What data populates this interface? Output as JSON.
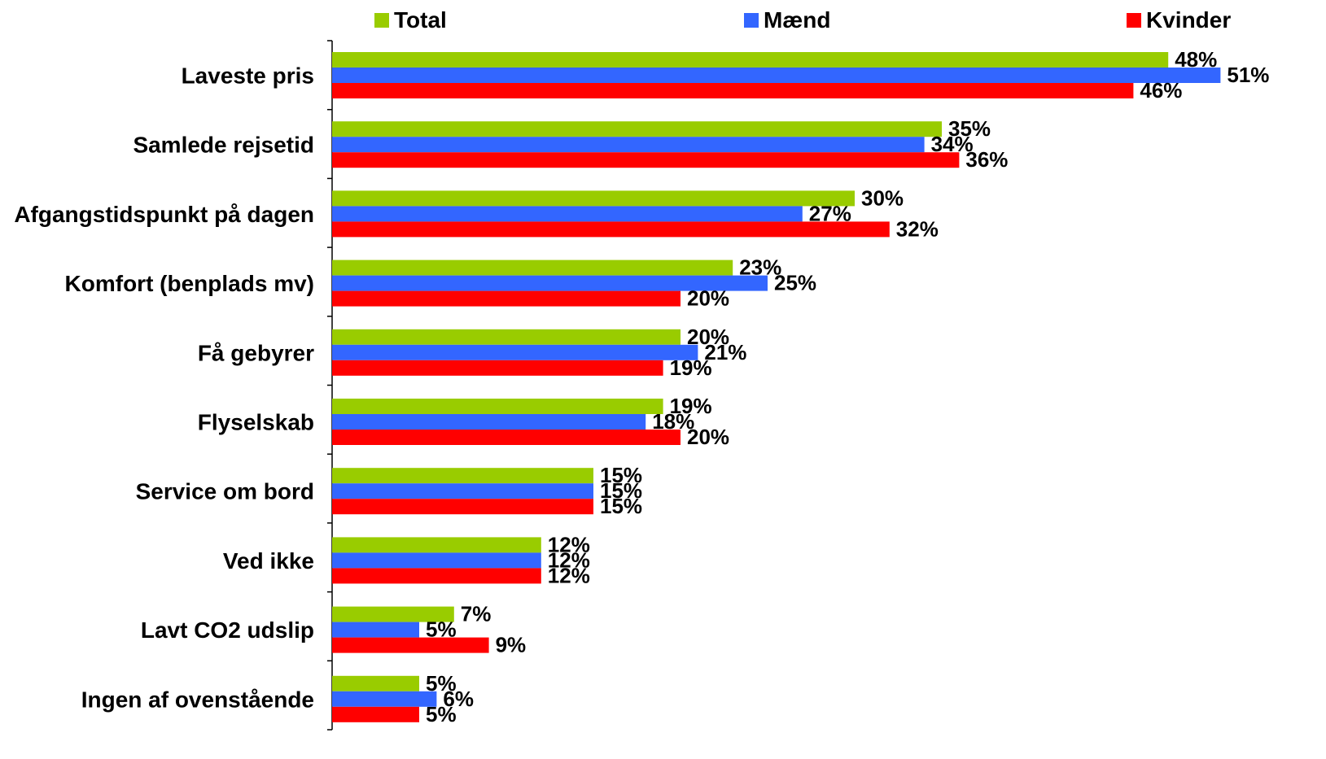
{
  "chart_data": {
    "type": "bar",
    "orientation": "horizontal",
    "categories": [
      "Laveste pris",
      "Samlede rejsetid",
      "Afgangstidspunkt på dagen",
      "Komfort (benplads mv)",
      "Få gebyrer",
      "Flyselskab",
      "Service om bord",
      "Ved ikke",
      "Lavt CO2 udslip",
      "Ingen af ovenstående"
    ],
    "series": [
      {
        "name": "Total",
        "color": "#99CC00",
        "values": [
          48,
          35,
          30,
          23,
          20,
          19,
          15,
          12,
          7,
          5
        ]
      },
      {
        "name": "Mænd",
        "color": "#3366FF",
        "values": [
          51,
          34,
          27,
          25,
          21,
          18,
          15,
          12,
          5,
          6
        ]
      },
      {
        "name": "Kvinder",
        "color": "#FF0000",
        "values": [
          46,
          36,
          32,
          20,
          19,
          20,
          15,
          12,
          9,
          5
        ]
      }
    ],
    "value_suffix": "%",
    "xlim": [
      0,
      51
    ],
    "grid": false,
    "legend_position": "top"
  }
}
